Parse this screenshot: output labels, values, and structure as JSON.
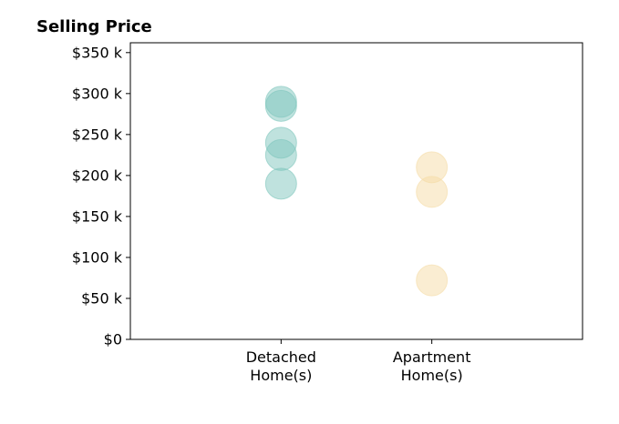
{
  "chart_data": {
    "type": "scatter",
    "title": "Selling Price",
    "categories": [
      "Detached\nHome(s)",
      "Apartment\nHome(s)"
    ],
    "y_ticks": [
      0,
      50000,
      100000,
      150000,
      200000,
      250000,
      300000,
      350000
    ],
    "y_tick_labels": [
      "$0",
      "$50 k",
      "$100 k",
      "$150 k",
      "$200 k",
      "$250 k",
      "$300 k",
      "$350 k"
    ],
    "ylim": [
      0,
      362000
    ],
    "xlim": [
      -1,
      2
    ],
    "grid": false,
    "legend": "none",
    "series": [
      {
        "color": "#7fc6bd",
        "points": [
          {
            "x": 0,
            "y": 190000
          },
          {
            "x": 0,
            "y": 225000
          },
          {
            "x": 0,
            "y": 240000
          },
          {
            "x": 0,
            "y": 285000
          },
          {
            "x": 0,
            "y": 290000
          }
        ]
      },
      {
        "color": "#f5dca6",
        "points": [
          {
            "x": 1,
            "y": 72000
          },
          {
            "x": 1,
            "y": 180000
          },
          {
            "x": 1,
            "y": 210000
          }
        ]
      }
    ]
  }
}
